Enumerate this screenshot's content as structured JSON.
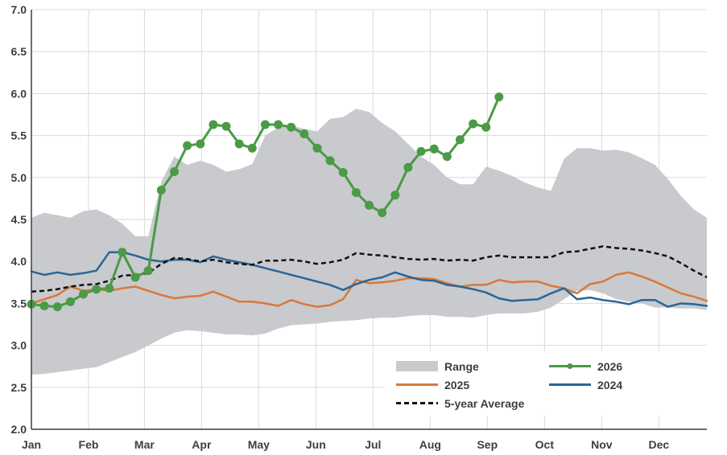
{
  "colors": {
    "range": "#c8cacd",
    "s2026": "#4a9a46",
    "s2025": "#d8793a",
    "s2024": "#2a6597",
    "avg": "#111111",
    "grid": "#dadada",
    "axis": "#3a3f44"
  },
  "chart_data": {
    "type": "line",
    "xlabel": "",
    "ylabel": "",
    "ylim": [
      2.0,
      7.0
    ],
    "xlim": [
      1,
      53
    ],
    "grid": true,
    "legend_position": "bottom-right",
    "x_ticks": [
      {
        "label": "Jan",
        "week": 1
      },
      {
        "label": "Feb",
        "week": 5.4
      },
      {
        "label": "Mar",
        "week": 9.7
      },
      {
        "label": "Apr",
        "week": 14.1
      },
      {
        "label": "May",
        "week": 18.5
      },
      {
        "label": "Jun",
        "week": 22.9
      },
      {
        "label": "Jul",
        "week": 27.3
      },
      {
        "label": "Aug",
        "week": 31.7
      },
      {
        "label": "Sep",
        "week": 36.1
      },
      {
        "label": "Oct",
        "week": 40.5
      },
      {
        "label": "Nov",
        "week": 44.9
      },
      {
        "label": "Dec",
        "week": 49.3
      }
    ],
    "y_ticks": [
      "2.0",
      "2.5",
      "3.0",
      "3.5",
      "4.0",
      "4.5",
      "5.0",
      "5.5",
      "6.0",
      "6.5",
      "7.0"
    ],
    "range": {
      "name": "Range",
      "upper": [
        [
          1,
          4.52
        ],
        [
          2,
          4.58
        ],
        [
          3,
          4.55
        ],
        [
          4,
          4.52
        ],
        [
          5,
          4.6
        ],
        [
          6,
          4.62
        ],
        [
          7,
          4.55
        ],
        [
          8,
          4.45
        ],
        [
          9,
          4.3
        ],
        [
          10,
          4.3
        ],
        [
          11,
          4.95
        ],
        [
          12,
          5.25
        ],
        [
          13,
          5.15
        ],
        [
          14,
          5.2
        ],
        [
          15,
          5.15
        ],
        [
          16,
          5.07
        ],
        [
          17,
          5.1
        ],
        [
          18,
          5.16
        ],
        [
          19,
          5.5
        ],
        [
          20,
          5.6
        ],
        [
          21,
          5.62
        ],
        [
          22,
          5.58
        ],
        [
          23,
          5.55
        ],
        [
          24,
          5.7
        ],
        [
          25,
          5.72
        ],
        [
          26,
          5.82
        ],
        [
          27,
          5.78
        ],
        [
          28,
          5.65
        ],
        [
          29,
          5.55
        ],
        [
          30,
          5.4
        ],
        [
          31,
          5.25
        ],
        [
          32,
          5.15
        ],
        [
          33,
          5.0
        ],
        [
          34,
          4.92
        ],
        [
          35,
          4.92
        ],
        [
          36,
          5.13
        ],
        [
          37,
          5.08
        ],
        [
          38,
          5.02
        ],
        [
          39,
          4.94
        ],
        [
          40,
          4.88
        ],
        [
          41,
          4.84
        ],
        [
          42,
          5.22
        ],
        [
          43,
          5.35
        ],
        [
          44,
          5.35
        ],
        [
          45,
          5.32
        ],
        [
          46,
          5.33
        ],
        [
          47,
          5.3
        ],
        [
          48,
          5.23
        ],
        [
          49,
          5.15
        ],
        [
          50,
          4.98
        ],
        [
          51,
          4.78
        ],
        [
          52,
          4.62
        ],
        [
          53,
          4.52
        ]
      ],
      "lower": [
        [
          1,
          2.65
        ],
        [
          2,
          2.66
        ],
        [
          3,
          2.68
        ],
        [
          4,
          2.7
        ],
        [
          5,
          2.72
        ],
        [
          6,
          2.74
        ],
        [
          7,
          2.8
        ],
        [
          8,
          2.86
        ],
        [
          9,
          2.92
        ],
        [
          10,
          3.0
        ],
        [
          11,
          3.08
        ],
        [
          12,
          3.15
        ],
        [
          13,
          3.18
        ],
        [
          14,
          3.17
        ],
        [
          15,
          3.15
        ],
        [
          16,
          3.13
        ],
        [
          17,
          3.13
        ],
        [
          18,
          3.12
        ],
        [
          19,
          3.14
        ],
        [
          20,
          3.2
        ],
        [
          21,
          3.24
        ],
        [
          22,
          3.25
        ],
        [
          23,
          3.26
        ],
        [
          24,
          3.28
        ],
        [
          25,
          3.29
        ],
        [
          26,
          3.3
        ],
        [
          27,
          3.32
        ],
        [
          28,
          3.33
        ],
        [
          29,
          3.33
        ],
        [
          30,
          3.35
        ],
        [
          31,
          3.36
        ],
        [
          32,
          3.36
        ],
        [
          33,
          3.34
        ],
        [
          34,
          3.34
        ],
        [
          35,
          3.33
        ],
        [
          36,
          3.36
        ],
        [
          37,
          3.38
        ],
        [
          38,
          3.38
        ],
        [
          39,
          3.38
        ],
        [
          40,
          3.4
        ],
        [
          41,
          3.45
        ],
        [
          42,
          3.55
        ],
        [
          43,
          3.65
        ],
        [
          44,
          3.66
        ],
        [
          45,
          3.62
        ],
        [
          46,
          3.55
        ],
        [
          47,
          3.52
        ],
        [
          48,
          3.5
        ],
        [
          49,
          3.45
        ],
        [
          50,
          3.45
        ],
        [
          51,
          3.44
        ],
        [
          52,
          3.44
        ],
        [
          53,
          3.42
        ]
      ]
    },
    "series": [
      {
        "name": "2026",
        "color": "#4a9a46",
        "markers": true,
        "points": [
          [
            1,
            3.49
          ],
          [
            2,
            3.47
          ],
          [
            3,
            3.46
          ],
          [
            4,
            3.52
          ],
          [
            5,
            3.61
          ],
          [
            6,
            3.67
          ],
          [
            7,
            3.68
          ],
          [
            8,
            4.11
          ],
          [
            9,
            3.81
          ],
          [
            10,
            3.89
          ],
          [
            11,
            4.85
          ],
          [
            12,
            5.07
          ],
          [
            13,
            5.38
          ],
          [
            14,
            5.4
          ],
          [
            15,
            5.63
          ],
          [
            16,
            5.61
          ],
          [
            17,
            5.4
          ],
          [
            18,
            5.35
          ],
          [
            19,
            5.63
          ],
          [
            20,
            5.63
          ],
          [
            21,
            5.6
          ],
          [
            22,
            5.52
          ],
          [
            23,
            5.35
          ],
          [
            24,
            5.2
          ],
          [
            25,
            5.06
          ],
          [
            26,
            4.82
          ],
          [
            27,
            4.67
          ],
          [
            28,
            4.58
          ],
          [
            29,
            4.79
          ],
          [
            30,
            5.12
          ],
          [
            31,
            5.31
          ],
          [
            32,
            5.34
          ],
          [
            33,
            5.25
          ],
          [
            34,
            5.45
          ],
          [
            35,
            5.64
          ],
          [
            36,
            5.6
          ],
          [
            37,
            5.96
          ]
        ]
      },
      {
        "name": "2025",
        "color": "#d8793a",
        "markers": false,
        "points": [
          [
            1,
            3.5
          ],
          [
            2,
            3.55
          ],
          [
            3,
            3.6
          ],
          [
            4,
            3.7
          ],
          [
            5,
            3.65
          ],
          [
            6,
            3.67
          ],
          [
            7,
            3.65
          ],
          [
            8,
            3.68
          ],
          [
            9,
            3.7
          ],
          [
            10,
            3.65
          ],
          [
            11,
            3.6
          ],
          [
            12,
            3.56
          ],
          [
            13,
            3.58
          ],
          [
            14,
            3.59
          ],
          [
            15,
            3.64
          ],
          [
            16,
            3.58
          ],
          [
            17,
            3.52
          ],
          [
            18,
            3.52
          ],
          [
            19,
            3.5
          ],
          [
            20,
            3.47
          ],
          [
            21,
            3.54
          ],
          [
            22,
            3.49
          ],
          [
            23,
            3.46
          ],
          [
            24,
            3.48
          ],
          [
            25,
            3.55
          ],
          [
            26,
            3.78
          ],
          [
            27,
            3.74
          ],
          [
            28,
            3.75
          ],
          [
            29,
            3.77
          ],
          [
            30,
            3.8
          ],
          [
            31,
            3.8
          ],
          [
            32,
            3.79
          ],
          [
            33,
            3.74
          ],
          [
            34,
            3.7
          ],
          [
            35,
            3.72
          ],
          [
            36,
            3.72
          ],
          [
            37,
            3.78
          ],
          [
            38,
            3.75
          ],
          [
            39,
            3.76
          ],
          [
            40,
            3.76
          ],
          [
            41,
            3.71
          ],
          [
            42,
            3.68
          ],
          [
            43,
            3.62
          ],
          [
            44,
            3.73
          ],
          [
            45,
            3.76
          ],
          [
            46,
            3.84
          ],
          [
            47,
            3.87
          ],
          [
            48,
            3.82
          ],
          [
            49,
            3.76
          ],
          [
            50,
            3.69
          ],
          [
            51,
            3.62
          ],
          [
            52,
            3.58
          ],
          [
            53,
            3.53
          ]
        ]
      },
      {
        "name": "2024",
        "color": "#2a6597",
        "markers": false,
        "points": [
          [
            1,
            3.88
          ],
          [
            2,
            3.84
          ],
          [
            3,
            3.87
          ],
          [
            4,
            3.84
          ],
          [
            5,
            3.86
          ],
          [
            6,
            3.89
          ],
          [
            7,
            4.11
          ],
          [
            8,
            4.11
          ],
          [
            9,
            4.07
          ],
          [
            10,
            4.02
          ],
          [
            11,
            4.0
          ],
          [
            12,
            4.02
          ],
          [
            13,
            4.02
          ],
          [
            14,
            3.99
          ],
          [
            15,
            4.06
          ],
          [
            16,
            4.02
          ],
          [
            17,
            3.99
          ],
          [
            18,
            3.96
          ],
          [
            19,
            3.92
          ],
          [
            20,
            3.88
          ],
          [
            21,
            3.84
          ],
          [
            22,
            3.8
          ],
          [
            23,
            3.76
          ],
          [
            24,
            3.72
          ],
          [
            25,
            3.66
          ],
          [
            26,
            3.73
          ],
          [
            27,
            3.78
          ],
          [
            28,
            3.81
          ],
          [
            29,
            3.87
          ],
          [
            30,
            3.82
          ],
          [
            31,
            3.78
          ],
          [
            32,
            3.77
          ],
          [
            33,
            3.72
          ],
          [
            34,
            3.7
          ],
          [
            35,
            3.67
          ],
          [
            36,
            3.63
          ],
          [
            37,
            3.56
          ],
          [
            38,
            3.53
          ],
          [
            39,
            3.54
          ],
          [
            40,
            3.55
          ],
          [
            41,
            3.62
          ],
          [
            42,
            3.68
          ],
          [
            43,
            3.55
          ],
          [
            44,
            3.57
          ],
          [
            45,
            3.54
          ],
          [
            46,
            3.52
          ],
          [
            47,
            3.49
          ],
          [
            48,
            3.54
          ],
          [
            49,
            3.54
          ],
          [
            50,
            3.46
          ],
          [
            51,
            3.5
          ],
          [
            52,
            3.49
          ],
          [
            53,
            3.47
          ]
        ]
      },
      {
        "name": "5-year Average",
        "color": "#111111",
        "markers": false,
        "dashed": true,
        "points": [
          [
            1,
            3.64
          ],
          [
            2,
            3.65
          ],
          [
            3,
            3.67
          ],
          [
            4,
            3.7
          ],
          [
            5,
            3.72
          ],
          [
            6,
            3.73
          ],
          [
            7,
            3.77
          ],
          [
            8,
            3.83
          ],
          [
            9,
            3.84
          ],
          [
            10,
            3.86
          ],
          [
            11,
            3.97
          ],
          [
            12,
            4.04
          ],
          [
            13,
            4.03
          ],
          [
            14,
            4.0
          ],
          [
            15,
            4.02
          ],
          [
            16,
            3.99
          ],
          [
            17,
            3.97
          ],
          [
            18,
            3.96
          ],
          [
            19,
            4.01
          ],
          [
            20,
            4.01
          ],
          [
            21,
            4.02
          ],
          [
            22,
            4.0
          ],
          [
            23,
            3.97
          ],
          [
            24,
            3.99
          ],
          [
            25,
            4.02
          ],
          [
            26,
            4.1
          ],
          [
            27,
            4.08
          ],
          [
            28,
            4.07
          ],
          [
            29,
            4.05
          ],
          [
            30,
            4.03
          ],
          [
            31,
            4.02
          ],
          [
            32,
            4.03
          ],
          [
            33,
            4.01
          ],
          [
            34,
            4.02
          ],
          [
            35,
            4.01
          ],
          [
            36,
            4.05
          ],
          [
            37,
            4.07
          ],
          [
            38,
            4.05
          ],
          [
            39,
            4.05
          ],
          [
            40,
            4.05
          ],
          [
            41,
            4.05
          ],
          [
            42,
            4.11
          ],
          [
            43,
            4.12
          ],
          [
            44,
            4.15
          ],
          [
            45,
            4.18
          ],
          [
            46,
            4.16
          ],
          [
            47,
            4.15
          ],
          [
            48,
            4.13
          ],
          [
            49,
            4.1
          ],
          [
            50,
            4.06
          ],
          [
            51,
            3.98
          ],
          [
            52,
            3.89
          ],
          [
            53,
            3.81
          ]
        ]
      }
    ],
    "legend": [
      {
        "label": "Range",
        "kind": "band"
      },
      {
        "label": "2026",
        "kind": "marker-line"
      },
      {
        "label": "2025",
        "kind": "line"
      },
      {
        "label": "2024",
        "kind": "line"
      },
      {
        "label": "5-year Average",
        "kind": "dashed"
      }
    ]
  }
}
